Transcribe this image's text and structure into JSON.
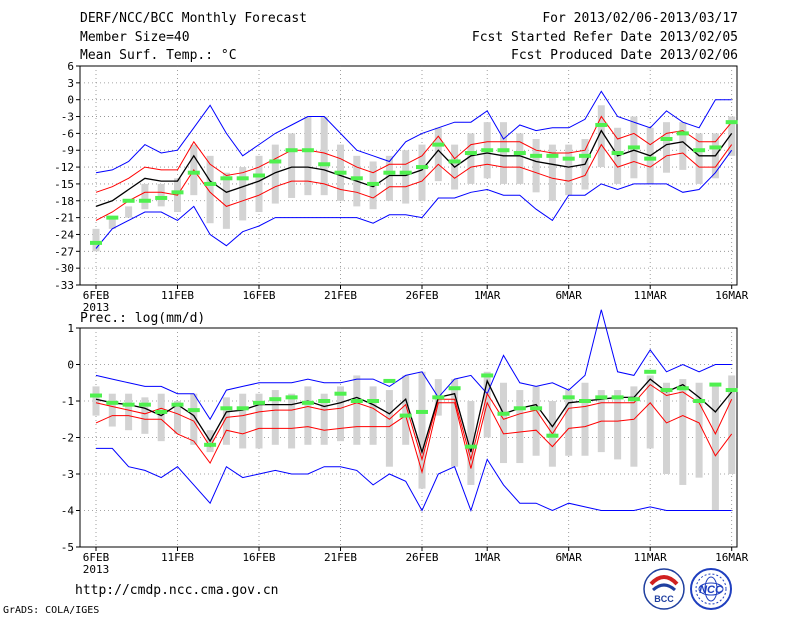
{
  "header": {
    "title": "DERF/NCC/BCC Monthly Forecast",
    "member_size": "Member Size=40",
    "variable": "Mean Surf. Temp.: °C",
    "period": "For 2013/02/06-2013/03/17",
    "refer_date": "Fcst Started Refer Date 2013/02/05",
    "produced_date": "Fcst Produced Date 2013/02/06"
  },
  "footer": {
    "url": "http://cmdp.ncc.cma.gov.cn",
    "credit": "GrADS: COLA/IGES",
    "logo_left_text": "BCC",
    "logo_right_text": "NCC"
  },
  "colors": {
    "envelope": "#0000ff",
    "mean": "#000000",
    "spread": "#ff0000",
    "box": "#d3d3d3",
    "observed": "#4ff04f",
    "grid": "#888888"
  },
  "chart_data": [
    {
      "type": "line",
      "name": "temperature",
      "title": "Mean Surf. Temp.: °C",
      "xlabel": "",
      "ylabel": "°C",
      "ylim": [
        -33,
        6
      ],
      "yticks": [
        6,
        3,
        0,
        -3,
        -6,
        -9,
        -12,
        -15,
        -18,
        -21,
        -24,
        -27,
        -30,
        -33
      ],
      "x_tick_labels": [
        "6FEB",
        "11FEB",
        "16FEB",
        "21FEB",
        "26FEB",
        "1MAR",
        "6MAR",
        "11MAR",
        "16MAR"
      ],
      "x_tick_days": [
        0,
        5,
        10,
        15,
        20,
        24,
        29,
        34,
        39
      ],
      "x_sub_label": "2013",
      "days": 40,
      "series": [
        {
          "name": "ensemble max",
          "values": [
            -13,
            -12.5,
            -11,
            -8,
            -9.5,
            -9,
            -5,
            -1,
            -6,
            -10,
            -8,
            -6,
            -4.5,
            -3,
            -3,
            -6,
            -9,
            -10,
            -11,
            -7.5,
            -6,
            -5,
            -4,
            -4,
            -2,
            -7,
            -4.5,
            -5.5,
            -5,
            -5,
            -3.5,
            1.5,
            -3,
            -4,
            -5,
            -2,
            -4,
            -5,
            0,
            0
          ]
        },
        {
          "name": "upper spread",
          "values": [
            -16.5,
            -15.5,
            -14,
            -12,
            -12.5,
            -12.5,
            -7.5,
            -11.5,
            -13.5,
            -13,
            -12,
            -10.5,
            -9,
            -9,
            -9.5,
            -10.5,
            -12,
            -13,
            -11.5,
            -11.5,
            -10,
            -6.5,
            -10.5,
            -8,
            -7.5,
            -7.5,
            -7.5,
            -9,
            -9.5,
            -9.5,
            -9,
            -3,
            -7,
            -6,
            -8,
            -6,
            -5.5,
            -7.5,
            -7.5,
            -4
          ]
        },
        {
          "name": "ensemble mean",
          "values": [
            -19,
            -18,
            -16,
            -14,
            -14.5,
            -14.5,
            -10,
            -14.5,
            -16.5,
            -15.5,
            -14.5,
            -13,
            -12,
            -12,
            -12.5,
            -13.5,
            -14.5,
            -15.5,
            -13.5,
            -13.5,
            -12.5,
            -9,
            -12,
            -10,
            -9.5,
            -10,
            -10,
            -11,
            -11.5,
            -12,
            -11.5,
            -5.5,
            -10,
            -9,
            -10,
            -8,
            -7.5,
            -10,
            -10,
            -6
          ]
        },
        {
          "name": "lower spread",
          "values": [
            -21.5,
            -20,
            -18,
            -16.5,
            -16.5,
            -17,
            -12.5,
            -16.5,
            -19,
            -18,
            -17,
            -15.5,
            -14.5,
            -14.5,
            -15,
            -16,
            -16.5,
            -17.5,
            -15.5,
            -15.5,
            -14.5,
            -11.5,
            -14,
            -12,
            -11.5,
            -12,
            -12,
            -13,
            -14,
            -14.5,
            -13.5,
            -8,
            -12,
            -11,
            -12,
            -10,
            -9.5,
            -12,
            -12,
            -8
          ]
        },
        {
          "name": "ensemble min",
          "values": [
            -26.5,
            -23,
            -21.5,
            -20,
            -20,
            -21.5,
            -19,
            -24,
            -26,
            -23.5,
            -22.5,
            -21,
            -21,
            -21,
            -21,
            -21,
            -21,
            -22,
            -20.5,
            -20.5,
            -21,
            -17.5,
            -17.5,
            -16.5,
            -16,
            -17,
            -17,
            -19.5,
            -21.5,
            -17,
            -17,
            -15,
            -16,
            -15,
            -15,
            -15,
            -16.5,
            -16,
            -13,
            -9
          ]
        }
      ],
      "boxes": {
        "low": [
          -27,
          -23,
          -21,
          -19.5,
          -19,
          -20,
          -17,
          -22,
          -23,
          -21.5,
          -20,
          -18.5,
          -17.5,
          -17,
          -17,
          -18,
          -19,
          -19.5,
          -18,
          -18.5,
          -18,
          -14.5,
          -16,
          -15,
          -14,
          -15,
          -15,
          -16.5,
          -18,
          -17,
          -16,
          -12,
          -15,
          -14,
          -15,
          -13,
          -12.5,
          -15,
          -14,
          -10
        ],
        "high": [
          -23,
          -21,
          -19,
          -15,
          -15,
          -14,
          -8,
          -10,
          -13,
          -12,
          -10,
          -8,
          -6,
          -3,
          -3,
          -8,
          -10,
          -11,
          -10,
          -9,
          -8,
          -5,
          -8,
          -6,
          -4,
          -4,
          -6,
          -7,
          -8,
          -8,
          -7,
          -1,
          -5,
          -3,
          -5,
          -4,
          -4,
          -6,
          -6,
          -3
        ]
      },
      "observed": [
        -25.5,
        -21,
        -18,
        -18,
        -17.5,
        -16.5,
        -13,
        -15,
        -14,
        -14,
        -13.5,
        -11,
        -9,
        -9,
        -11.5,
        -13,
        -14,
        -15,
        -13,
        -13,
        -12,
        -8,
        -11,
        -9.5,
        -9,
        -9,
        -9.5,
        -10,
        -10,
        -10.5,
        -10,
        -4.5,
        -9.5,
        -8.5,
        -10.5,
        -7,
        -6,
        -9,
        -8.5,
        -4
      ]
    },
    {
      "type": "line",
      "name": "precipitation",
      "title": "Prec.: log(mm/d)",
      "xlabel": "",
      "ylabel": "log(mm/d)",
      "ylim": [
        -5,
        1
      ],
      "yticks": [
        1,
        0,
        -1,
        -2,
        -3,
        -4,
        -5
      ],
      "x_tick_labels": [
        "6FEB",
        "11FEB",
        "16FEB",
        "21FEB",
        "26FEB",
        "1MAR",
        "6MAR",
        "11MAR",
        "16MAR"
      ],
      "x_tick_days": [
        0,
        5,
        10,
        15,
        20,
        24,
        29,
        34,
        39
      ],
      "x_sub_label": "2013",
      "days": 40,
      "series": [
        {
          "name": "ensemble max",
          "values": [
            -0.3,
            -0.4,
            -0.5,
            -0.6,
            -0.6,
            -0.8,
            -0.8,
            -1.5,
            -0.7,
            -0.6,
            -0.5,
            -0.5,
            -0.5,
            -0.4,
            -0.5,
            -0.5,
            -0.4,
            -0.4,
            -0.6,
            -0.3,
            -0.2,
            -0.9,
            -0.4,
            -0.3,
            -0.8,
            0.25,
            -0.5,
            -0.6,
            -0.5,
            -0.7,
            -0.3,
            1.5,
            -0.2,
            -0.3,
            0.4,
            -0.2,
            0,
            -0.2,
            0,
            0
          ]
        },
        {
          "name": "upper spread",
          "values": [
            -1.05,
            -1.15,
            -1.25,
            -1.35,
            -1.2,
            -1.35,
            -1.55,
            -2.25,
            -1.45,
            -1.4,
            -1.3,
            -1.25,
            -1.25,
            -1.15,
            -1.25,
            -1.2,
            -1.05,
            -1.2,
            -1.5,
            -1.1,
            -2.6,
            -0.95,
            -0.95,
            -2.6,
            -0.8,
            -1.5,
            -1.35,
            -1.25,
            -1.9,
            -1.2,
            -1.15,
            -1.05,
            -1.05,
            -1.05,
            -0.55,
            -0.85,
            -0.75,
            -1.05,
            -1.9,
            -0.95
          ]
        },
        {
          "name": "ensemble mean",
          "values": [
            -0.95,
            -1.05,
            -1.1,
            -1.2,
            -1.4,
            -1.1,
            -1.4,
            -2.1,
            -1.3,
            -1.25,
            -1.1,
            -1.1,
            -1.1,
            -1.0,
            -1.15,
            -1.05,
            -0.9,
            -1.1,
            -1.35,
            -0.95,
            -2.4,
            -0.9,
            -0.8,
            -2.4,
            -0.45,
            -1.35,
            -1.2,
            -1.1,
            -1.7,
            -1.05,
            -1.0,
            -0.95,
            -0.9,
            -0.9,
            -0.4,
            -0.75,
            -0.55,
            -0.9,
            -1.3,
            -0.75
          ]
        },
        {
          "name": "lower spread",
          "values": [
            -1.6,
            -1.4,
            -1.4,
            -1.5,
            -1.5,
            -1.9,
            -2.1,
            -2.7,
            -1.8,
            -1.9,
            -1.75,
            -1.75,
            -1.75,
            -1.7,
            -1.8,
            -1.75,
            -1.7,
            -1.7,
            -1.7,
            -1.4,
            -2.95,
            -1.05,
            -1.05,
            -2.85,
            -1.05,
            -1.9,
            -1.85,
            -1.8,
            -2.25,
            -1.75,
            -1.7,
            -1.55,
            -1.55,
            -1.5,
            -1.05,
            -1.6,
            -1.4,
            -1.6,
            -2.5,
            -1.9
          ]
        },
        {
          "name": "ensemble min",
          "values": [
            -2.3,
            -2.3,
            -2.8,
            -2.9,
            -3.1,
            -2.8,
            -3.3,
            -3.8,
            -2.8,
            -3.1,
            -3.0,
            -2.9,
            -3.0,
            -3.0,
            -2.8,
            -2.8,
            -2.9,
            -3.3,
            -3.0,
            -3.2,
            -4.0,
            -3.0,
            -2.8,
            -4.0,
            -2.6,
            -3.3,
            -3.8,
            -3.8,
            -4.0,
            -3.8,
            -3.9,
            -4.0,
            -4.0,
            -4.0,
            -3.9,
            -4.0,
            -4.0,
            -4.0,
            -4.0,
            -4.0
          ]
        }
      ],
      "boxes": {
        "low": [
          -1.4,
          -1.7,
          -1.8,
          -1.9,
          -2.1,
          -1.9,
          -2.2,
          -2.4,
          -2.2,
          -2.3,
          -2.3,
          -2.2,
          -2.3,
          -2.2,
          -2.2,
          -2.1,
          -2.2,
          -2.2,
          -2.8,
          -2.2,
          -3.4,
          -1.4,
          -2.8,
          -3.3,
          -2.0,
          -2.7,
          -2.7,
          -2.5,
          -2.8,
          -2.5,
          -2.5,
          -2.4,
          -2.6,
          -2.8,
          -2.3,
          -3.0,
          -3.3,
          -3.1,
          -4.0,
          -3.0
        ],
        "high": [
          -0.6,
          -0.8,
          -0.8,
          -0.9,
          -0.8,
          -1.0,
          -0.8,
          -1.8,
          -0.9,
          -0.8,
          -0.8,
          -0.7,
          -0.8,
          -0.6,
          -0.8,
          -0.6,
          -0.3,
          -0.6,
          -0.7,
          -0.3,
          -0.2,
          -0.4,
          -0.4,
          -1.0,
          -0.2,
          -0.5,
          -0.7,
          -0.6,
          -1.0,
          -0.7,
          -0.5,
          -0.7,
          -0.7,
          -0.6,
          -0.3,
          -0.5,
          -0.4,
          -0.5,
          -0.6,
          -0.3
        ]
      },
      "observed": [
        -0.85,
        -1.05,
        -1.1,
        -1.1,
        -1.3,
        -1.1,
        -1.25,
        -2.2,
        -1.2,
        -1.2,
        -1.05,
        -0.95,
        -0.9,
        -1.05,
        -1.0,
        -0.8,
        -1.0,
        -1.0,
        -0.45,
        -1.4,
        -1.3,
        -0.9,
        -0.65,
        -2.25,
        -0.3,
        -1.35,
        -1.2,
        -1.2,
        -1.95,
        -0.9,
        -1.0,
        -0.9,
        -0.9,
        -0.95,
        -0.2,
        -0.7,
        -0.65,
        -1.0,
        -0.55,
        -0.7
      ]
    }
  ]
}
